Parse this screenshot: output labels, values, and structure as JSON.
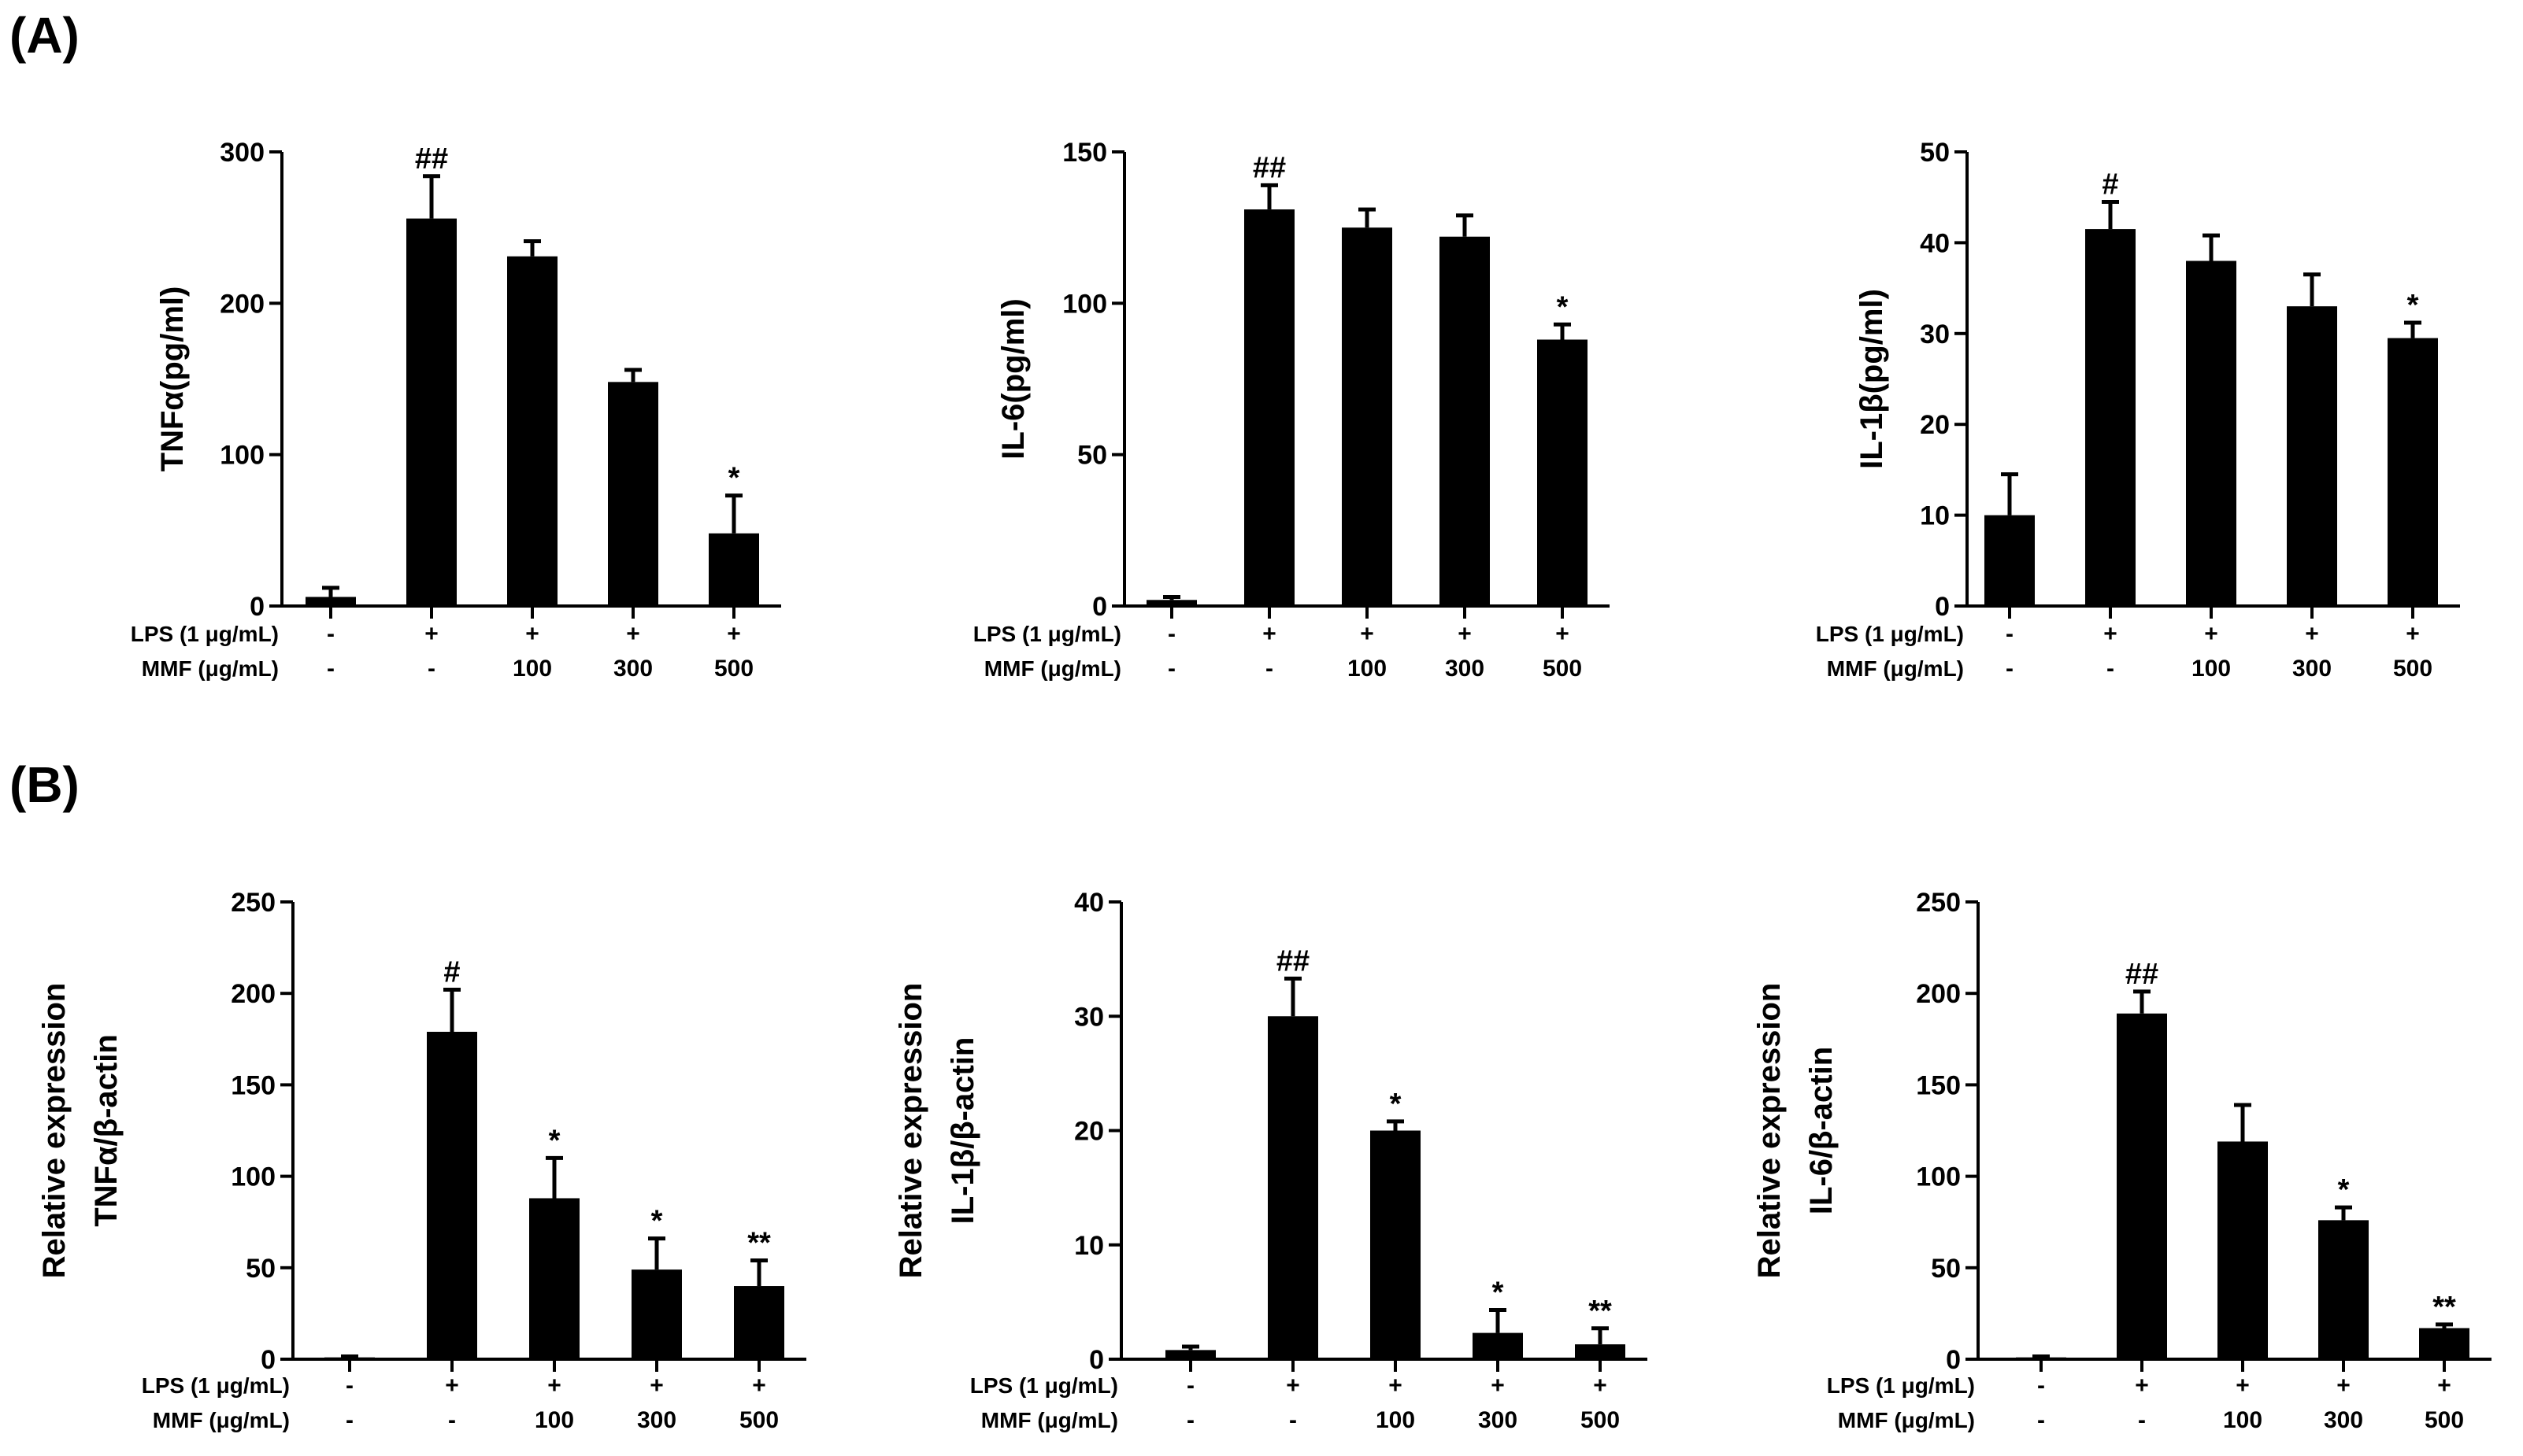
{
  "panels": {
    "a": "(A)",
    "b": "(B)"
  },
  "row_labels": {
    "lps": "LPS (1 μg/mL)",
    "mmf": "MMF (μg/mL)"
  },
  "conditions": {
    "lps": [
      "-",
      "+",
      "+",
      "+",
      "+"
    ],
    "mmf": [
      "-",
      "-",
      "100",
      "300",
      "500"
    ]
  },
  "chart_data": [
    {
      "id": "a1",
      "panel": "A",
      "type": "bar",
      "ylabel_lines": [
        "TNFα(pg/ml)"
      ],
      "ylim": [
        0,
        300
      ],
      "yticks": [
        0,
        100,
        200,
        300
      ],
      "values": [
        6,
        256,
        231,
        148,
        48
      ],
      "errors": [
        6,
        28,
        10,
        8,
        25
      ],
      "marks": [
        "",
        "##",
        "",
        "",
        "*"
      ]
    },
    {
      "id": "a2",
      "panel": "A",
      "type": "bar",
      "ylabel_lines": [
        "IL-6(pg/ml)"
      ],
      "ylim": [
        0,
        150
      ],
      "yticks": [
        0,
        50,
        100,
        150
      ],
      "values": [
        2,
        131,
        125,
        122,
        88
      ],
      "errors": [
        1,
        8,
        6,
        7,
        5
      ],
      "marks": [
        "",
        "##",
        "",
        "",
        "*"
      ]
    },
    {
      "id": "a3",
      "panel": "A",
      "type": "bar",
      "ylabel_lines": [
        "IL-1β(pg/ml)"
      ],
      "ylim": [
        0,
        50
      ],
      "yticks": [
        0,
        10,
        20,
        30,
        40,
        50
      ],
      "values": [
        10,
        41.5,
        38,
        33,
        29.5
      ],
      "errors": [
        4.5,
        3,
        2.8,
        3.5,
        1.7
      ],
      "marks": [
        "",
        "#",
        "",
        "",
        "*"
      ]
    },
    {
      "id": "b1",
      "panel": "B",
      "type": "bar",
      "ylabel_lines": [
        "Relative expression",
        "TNFα/β-actin"
      ],
      "ylim": [
        0,
        250
      ],
      "yticks": [
        0,
        50,
        100,
        150,
        200,
        250
      ],
      "values": [
        1,
        179,
        88,
        49,
        40
      ],
      "errors": [
        0.5,
        23,
        22,
        17,
        14
      ],
      "marks": [
        "",
        "#",
        "*",
        "*",
        "**"
      ]
    },
    {
      "id": "b2",
      "panel": "B",
      "type": "bar",
      "ylabel_lines": [
        "Relative expression",
        "IL-1β/β-actin"
      ],
      "ylim": [
        0,
        40
      ],
      "yticks": [
        0,
        10,
        20,
        30,
        40
      ],
      "values": [
        0.8,
        30,
        20,
        2.3,
        1.3
      ],
      "errors": [
        0.3,
        3.3,
        0.8,
        2,
        1.4
      ],
      "marks": [
        "",
        "##",
        "*",
        "*",
        "**"
      ]
    },
    {
      "id": "b3",
      "panel": "B",
      "type": "bar",
      "ylabel_lines": [
        "Relative expression",
        "IL-6/β-actin"
      ],
      "ylim": [
        0,
        250
      ],
      "yticks": [
        0,
        50,
        100,
        150,
        200,
        250
      ],
      "values": [
        1,
        189,
        119,
        76,
        17
      ],
      "errors": [
        0.5,
        12,
        20,
        7,
        2
      ],
      "marks": [
        "",
        "##",
        "",
        "*",
        "**"
      ]
    }
  ]
}
